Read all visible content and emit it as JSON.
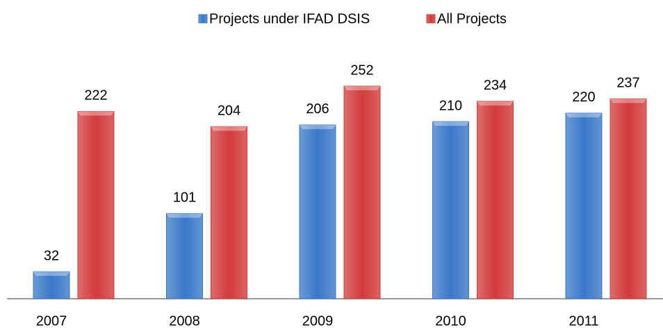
{
  "chart_data": {
    "type": "bar",
    "categories": [
      "2007",
      "2008",
      "2009",
      "2010",
      "2011"
    ],
    "series": [
      {
        "name": "Projects under IFAD DSIS",
        "color": "#3a78c8",
        "values": [
          32,
          101,
          206,
          210,
          220
        ]
      },
      {
        "name": "All Projects",
        "color": "#d23b3b",
        "values": [
          222,
          204,
          252,
          234,
          237
        ]
      }
    ],
    "legend": "top"
  }
}
